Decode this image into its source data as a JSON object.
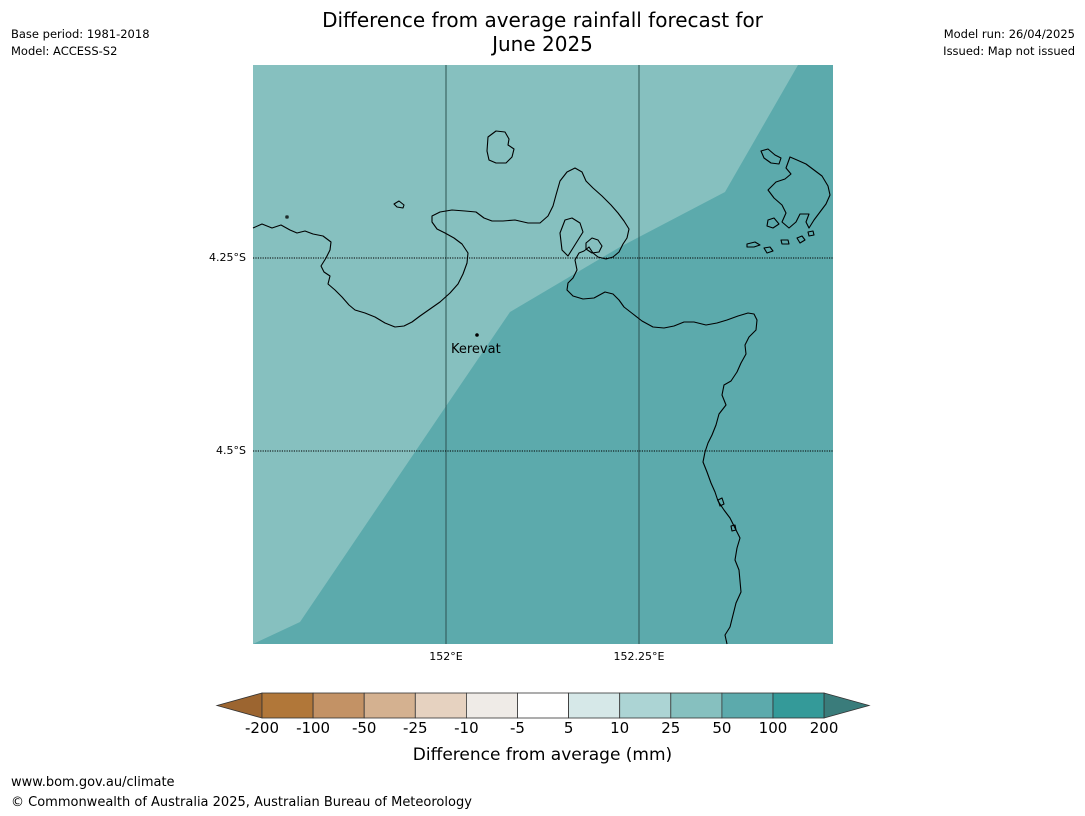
{
  "header": {
    "title_line1": "Difference from average rainfall forecast for",
    "title_line2": "June 2025",
    "base_period": "Base period: 1981-2018",
    "model": "Model: ACCESS-S2",
    "model_run": "Model run: 26/04/2025",
    "issued": "Issued: Map not issued"
  },
  "map": {
    "place_name": "Kerevat",
    "lat_labels": [
      "4.25°S",
      "4.5°S"
    ],
    "lon_labels": [
      "152°E",
      "152.25°E"
    ],
    "colors": {
      "light_zone": "#86c0bf",
      "dark_zone": "#5caaac",
      "coastline": "#000000"
    }
  },
  "colorbar": {
    "tick_labels": [
      "-200",
      "-100",
      "-50",
      "-25",
      "-10",
      "-5",
      "5",
      "10",
      "25",
      "50",
      "100",
      "200"
    ],
    "colors": [
      "#9c6530",
      "#b17739",
      "#c39265",
      "#d4b190",
      "#e6d2c0",
      "#efebe7",
      "#ffffff",
      "#d6e8e8",
      "#acd4d4",
      "#86c0bf",
      "#5caaac",
      "#349a99",
      "#3a7c7b"
    ],
    "title": "Difference from average (mm)"
  },
  "footer": {
    "url": "www.bom.gov.au/climate",
    "copyright": "© Commonwealth of Australia 2025, Australian Bureau of Meteorology"
  }
}
